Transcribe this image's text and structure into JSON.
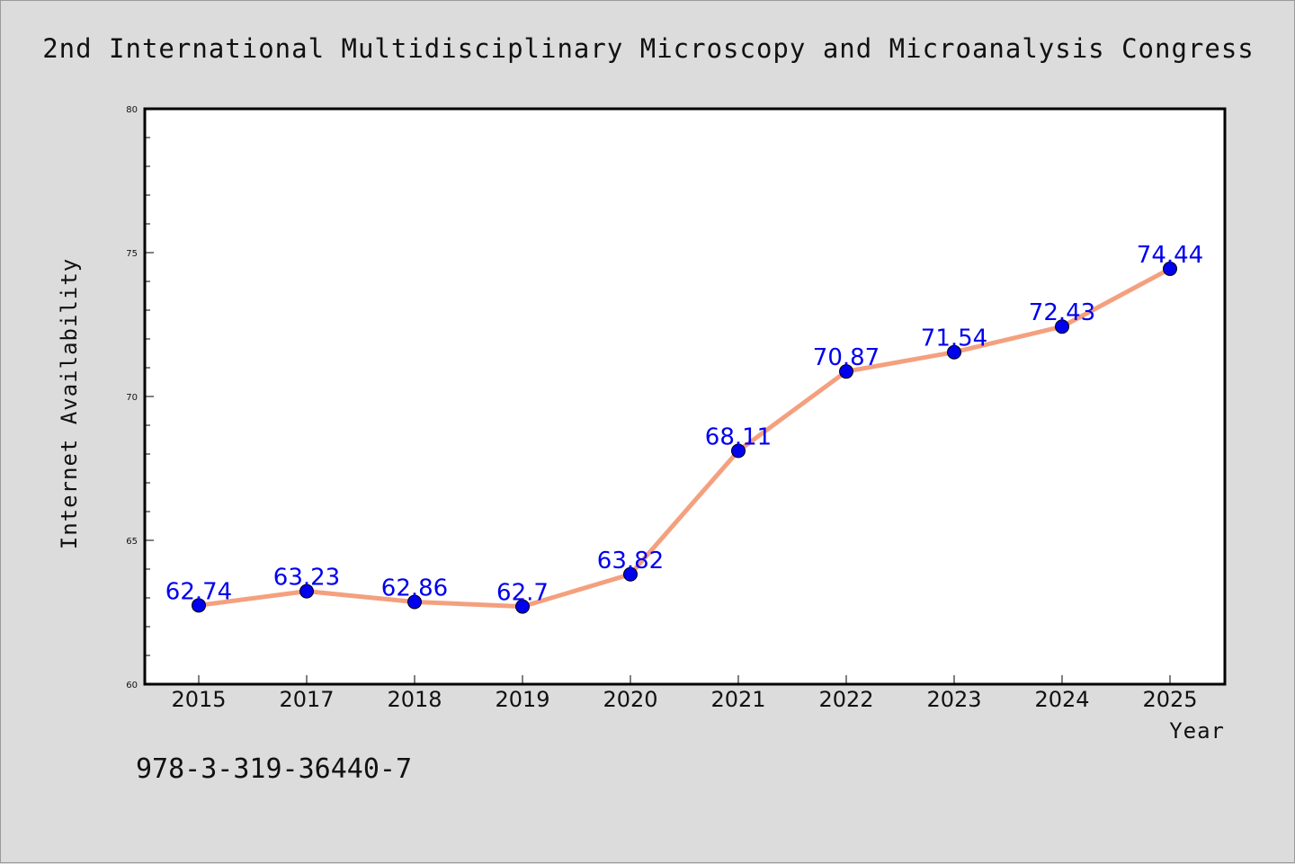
{
  "chart_data": {
    "type": "line",
    "title": "2nd International Multidisciplinary Microscopy and Microanalysis Congress",
    "xlabel": "Year",
    "ylabel": "Internet Availability",
    "categories": [
      "2015",
      "2017",
      "2018",
      "2019",
      "2020",
      "2021",
      "2022",
      "2023",
      "2024",
      "2025"
    ],
    "values": [
      62.74,
      63.23,
      62.86,
      62.7,
      63.82,
      68.11,
      70.87,
      71.54,
      72.43,
      74.44
    ],
    "data_labels": [
      "62.74",
      "63.23",
      "62.86",
      "62.7",
      "63.82",
      "68.11",
      "70.87",
      "71.54",
      "72.43",
      "74.44"
    ],
    "ylim": [
      60,
      80
    ],
    "y_ticks": [
      60,
      65,
      70,
      75,
      80
    ],
    "y_tick_labels": [
      "60",
      "65",
      "70",
      "75",
      "80"
    ],
    "grid": false,
    "legend": "none",
    "line_color": "#f4a07f",
    "marker_color": "#0000ee",
    "label_color": "#0000ee"
  },
  "footnote": "978-3-319-36440-7"
}
